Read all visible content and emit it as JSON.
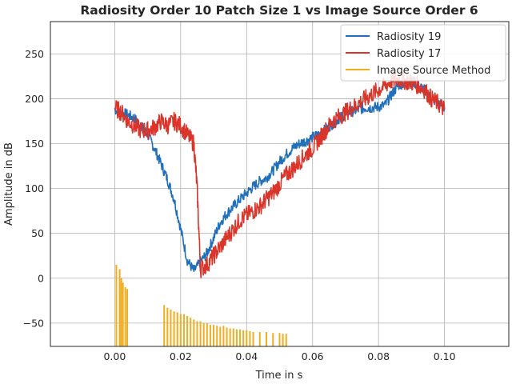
{
  "chart_data": {
    "type": "line",
    "title": "Radiosity Order 10 Patch Size 1 vs Image Source Order 6",
    "xlabel": "Time in s",
    "ylabel": "Amplitude in dB",
    "xlim": [
      -0.0195,
      0.1195
    ],
    "ylim": [
      -76,
      286
    ],
    "xticks": [
      0.0,
      0.02,
      0.04,
      0.06,
      0.08,
      0.1
    ],
    "xtick_labels": [
      "0.00",
      "0.02",
      "0.04",
      "0.06",
      "0.08",
      "0.10"
    ],
    "yticks": [
      -50,
      0,
      50,
      100,
      150,
      200,
      250
    ],
    "ytick_labels": [
      "−50",
      "0",
      "50",
      "100",
      "150",
      "200",
      "250"
    ],
    "grid": true,
    "legend_position": "top-right",
    "series": [
      {
        "name": "Radiosity 19",
        "color": "#1f6fba",
        "noise": 6,
        "x": [
          0.0,
          0.002,
          0.004,
          0.006,
          0.008,
          0.01,
          0.012,
          0.014,
          0.016,
          0.018,
          0.02,
          0.022,
          0.024,
          0.026,
          0.028,
          0.03,
          0.032,
          0.034,
          0.036,
          0.038,
          0.04,
          0.042,
          0.044,
          0.046,
          0.048,
          0.05,
          0.052,
          0.054,
          0.056,
          0.058,
          0.06,
          0.062,
          0.064,
          0.066,
          0.068,
          0.07,
          0.072,
          0.074,
          0.076,
          0.078,
          0.08,
          0.082,
          0.084,
          0.086,
          0.088,
          0.09,
          0.092,
          0.094,
          0.096,
          0.098,
          0.1
        ],
        "y": [
          188,
          185,
          182,
          178,
          170,
          160,
          145,
          128,
          110,
          88,
          55,
          20,
          8,
          18,
          28,
          45,
          62,
          72,
          80,
          88,
          95,
          102,
          108,
          112,
          120,
          130,
          138,
          145,
          150,
          153,
          157,
          160,
          166,
          172,
          178,
          183,
          186,
          188,
          190,
          190,
          191,
          193,
          205,
          215,
          218,
          220,
          215,
          210,
          200,
          196,
          190
        ]
      },
      {
        "name": "Radiosity 17",
        "color": "#d9352a",
        "noise": 10,
        "x": [
          0.0,
          0.002,
          0.004,
          0.006,
          0.008,
          0.01,
          0.012,
          0.014,
          0.016,
          0.018,
          0.02,
          0.022,
          0.024,
          0.025,
          0.026,
          0.028,
          0.03,
          0.032,
          0.034,
          0.036,
          0.038,
          0.04,
          0.042,
          0.044,
          0.046,
          0.048,
          0.05,
          0.052,
          0.054,
          0.056,
          0.058,
          0.06,
          0.062,
          0.064,
          0.066,
          0.068,
          0.07,
          0.072,
          0.074,
          0.076,
          0.078,
          0.08,
          0.082,
          0.084,
          0.086,
          0.088,
          0.09,
          0.092,
          0.094,
          0.096,
          0.098,
          0.1
        ],
        "y": [
          190,
          185,
          175,
          170,
          165,
          165,
          168,
          175,
          170,
          175,
          170,
          160,
          150,
          100,
          10,
          15,
          25,
          35,
          45,
          55,
          65,
          70,
          75,
          80,
          88,
          95,
          105,
          115,
          122,
          130,
          138,
          145,
          155,
          165,
          175,
          180,
          185,
          190,
          195,
          200,
          205,
          210,
          215,
          220,
          222,
          220,
          218,
          215,
          210,
          200,
          195,
          188
        ]
      }
    ],
    "impulses": {
      "name": "Image Source Method",
      "color": "#f0ad1e",
      "baseline": -76,
      "x": [
        0.0005,
        0.0015,
        0.002,
        0.0025,
        0.0032,
        0.0038,
        0.015,
        0.016,
        0.017,
        0.018,
        0.019,
        0.02,
        0.021,
        0.022,
        0.023,
        0.024,
        0.025,
        0.026,
        0.027,
        0.028,
        0.029,
        0.03,
        0.031,
        0.032,
        0.033,
        0.034,
        0.035,
        0.036,
        0.037,
        0.038,
        0.039,
        0.04,
        0.041,
        0.042,
        0.044,
        0.046,
        0.048,
        0.05,
        0.051,
        0.052
      ],
      "y": [
        15,
        10,
        0,
        -5,
        -10,
        -12,
        -30,
        -33,
        -35,
        -37,
        -38,
        -40,
        -40,
        -42,
        -44,
        -46,
        -48,
        -48,
        -50,
        -50,
        -52,
        -52,
        -53,
        -54,
        -53,
        -55,
        -56,
        -56,
        -57,
        -57,
        -58,
        -58,
        -59,
        -60,
        -60,
        -60,
        -61,
        -61,
        -62,
        -62
      ]
    }
  }
}
